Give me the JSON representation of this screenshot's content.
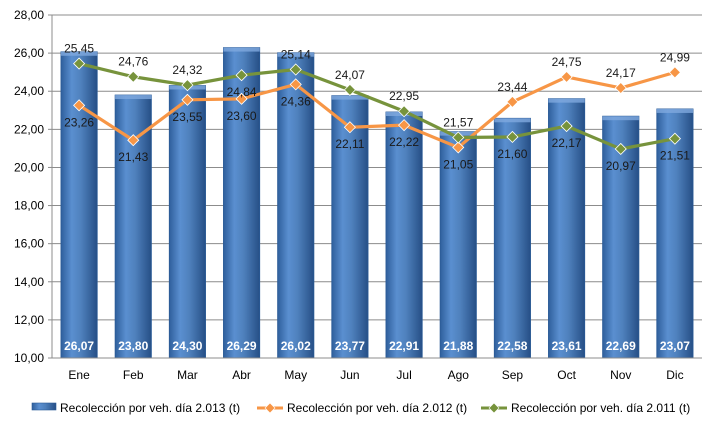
{
  "chart_data": {
    "type": "bar",
    "categories": [
      "Ene",
      "Feb",
      "Mar",
      "Abr",
      "May",
      "Jun",
      "Jul",
      "Ago",
      "Sep",
      "Oct",
      "Nov",
      "Dic"
    ],
    "ylim": [
      10,
      28
    ],
    "yticks": [
      "10,00",
      "12,00",
      "14,00",
      "16,00",
      "18,00",
      "20,00",
      "22,00",
      "24,00",
      "26,00",
      "28,00"
    ],
    "grid": true,
    "legend_position": "bottom",
    "series": [
      {
        "name": "Recolección por veh. día 2.013 (t)",
        "type": "bar",
        "color": "#4f81bd",
        "values": [
          26.07,
          23.8,
          24.3,
          26.29,
          26.02,
          23.77,
          22.91,
          21.88,
          22.58,
          23.61,
          22.69,
          23.07
        ],
        "labels": [
          "26,07",
          "23,80",
          "24,30",
          "26,29",
          "26,02",
          "23,77",
          "22,91",
          "21,88",
          "22,58",
          "23,61",
          "22,69",
          "23,07"
        ]
      },
      {
        "name": "Recolección por veh. día 2.012 (t)",
        "type": "line",
        "color": "#f79646",
        "values": [
          23.26,
          21.43,
          23.55,
          23.6,
          24.36,
          22.11,
          22.22,
          21.05,
          23.44,
          24.75,
          24.17,
          24.99
        ],
        "labels": [
          "23,26",
          "21,43",
          "23,55",
          "23,60",
          "24,36",
          "22,11",
          "22,22",
          "21,05",
          "23,44",
          "24,75",
          "24,17",
          "24,99"
        ]
      },
      {
        "name": "Recolección por veh. día 2.011 (t)",
        "type": "line",
        "color": "#77933c",
        "values": [
          25.45,
          24.76,
          24.32,
          24.84,
          25.14,
          24.07,
          22.95,
          21.57,
          21.6,
          22.17,
          20.97,
          21.51
        ],
        "labels": [
          "25,45",
          "24,76",
          "24,32",
          "24,84",
          "25,14",
          "24,07",
          "22,95",
          "21,57",
          "21,60",
          "22,17",
          "20,97",
          "21,51"
        ]
      }
    ]
  }
}
